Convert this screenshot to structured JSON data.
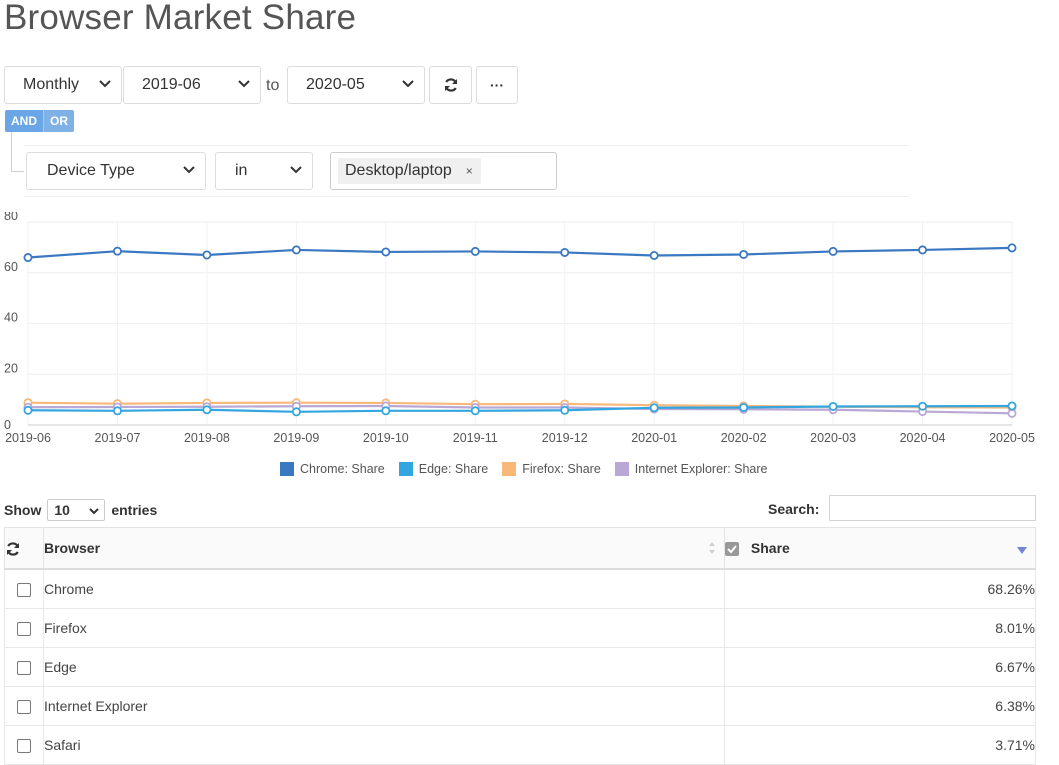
{
  "page": {
    "title": "Browser Market Share"
  },
  "controls": {
    "interval": "Monthly",
    "from": "2019-06",
    "to_label": "to",
    "to": "2020-05",
    "more": "···"
  },
  "filter": {
    "and_label": "AND",
    "or_label": "OR",
    "field": "Device Type",
    "operator": "in",
    "value_tag": "Desktop/laptop",
    "remove_glyph": "×"
  },
  "chart_data": {
    "type": "line",
    "x": [
      "2019-06",
      "2019-07",
      "2019-08",
      "2019-09",
      "2019-10",
      "2019-11",
      "2019-12",
      "2020-01",
      "2020-02",
      "2020-03",
      "2020-04",
      "2020-05"
    ],
    "ylim": [
      0,
      80
    ],
    "yticks": [
      0,
      20,
      40,
      60,
      80
    ],
    "grid": true,
    "legend_position": "bottom",
    "series": [
      {
        "name": "Chrome: Share",
        "color": "#3a78c2",
        "values": [
          66.0,
          68.5,
          67.0,
          69.0,
          68.2,
          68.4,
          68.0,
          66.8,
          67.2,
          68.4,
          69.0,
          69.8
        ]
      },
      {
        "name": "Edge: Share",
        "color": "#33a6e0",
        "values": [
          5.8,
          5.6,
          6.0,
          5.2,
          5.6,
          5.6,
          5.8,
          6.8,
          6.9,
          7.3,
          7.4,
          7.5
        ]
      },
      {
        "name": "Firefox: Share",
        "color": "#f7b87a",
        "values": [
          8.8,
          8.4,
          8.7,
          8.8,
          8.7,
          8.2,
          8.3,
          7.8,
          7.5,
          7.2,
          7.0,
          6.9
        ]
      },
      {
        "name": "Internet Explorer: Share",
        "color": "#b9a7d6",
        "values": [
          7.0,
          7.1,
          7.2,
          7.4,
          7.5,
          6.9,
          6.9,
          6.3,
          6.2,
          6.0,
          5.3,
          4.6
        ]
      }
    ]
  },
  "table": {
    "show_label": "Show",
    "length": "10",
    "entries_label": "entries",
    "search_label": "Search:",
    "columns": [
      "Browser",
      "Share"
    ],
    "rows": [
      {
        "browser": "Chrome",
        "share": "68.26%"
      },
      {
        "browser": "Firefox",
        "share": "8.01%"
      },
      {
        "browser": "Edge",
        "share": "6.67%"
      },
      {
        "browser": "Internet Explorer",
        "share": "6.38%"
      },
      {
        "browser": "Safari",
        "share": "3.71%"
      }
    ]
  }
}
